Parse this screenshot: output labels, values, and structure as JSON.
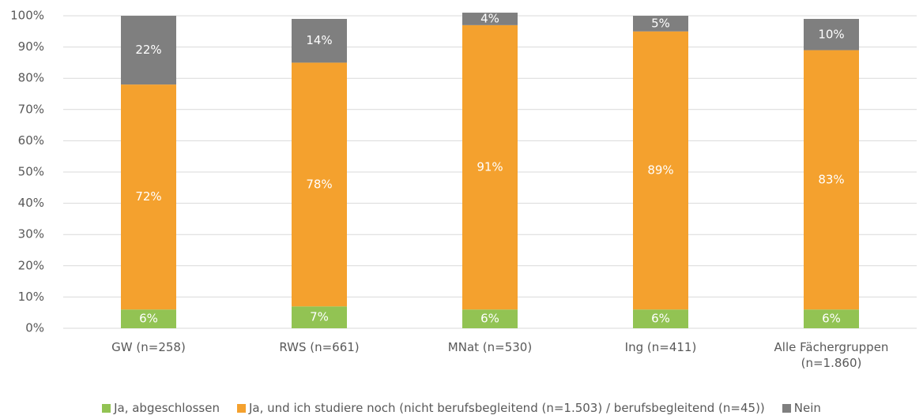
{
  "chart_data": {
    "type": "stacked_bar",
    "categories": [
      "GW (n=258)",
      "RWS (n=661)",
      "MNat (n=530)",
      "Ing (n=411)",
      "Alle Fächergruppen (n=1.860)"
    ],
    "series": [
      {
        "name": "Ja, abgeschlossen",
        "color": "#92c353",
        "values": [
          6,
          7,
          6,
          6,
          6
        ],
        "value_labels": [
          "6%",
          "7%",
          "6%",
          "6%",
          "6%"
        ]
      },
      {
        "name": "Ja, und ich studiere noch (nicht berufsbegleitend (n=1.503) / berufsbegleitend (n=45))",
        "color": "#f4a12e",
        "values": [
          72,
          78,
          91,
          89,
          83
        ],
        "value_labels": [
          "72%",
          "78%",
          "91%",
          "89%",
          "83%"
        ]
      },
      {
        "name": "Nein",
        "color": "#7f7f7f",
        "values": [
          22,
          14,
          4,
          5,
          10
        ],
        "value_labels": [
          "22%",
          "14%",
          "4%",
          "5%",
          "10%"
        ]
      }
    ],
    "ylim": [
      0,
      100
    ],
    "yticks": [
      {
        "value": 0,
        "label": "0%"
      },
      {
        "value": 10,
        "label": "10%"
      },
      {
        "value": 20,
        "label": "20%"
      },
      {
        "value": 30,
        "label": "30%"
      },
      {
        "value": 40,
        "label": "40%"
      },
      {
        "value": 50,
        "label": "50%"
      },
      {
        "value": 60,
        "label": "60%"
      },
      {
        "value": 70,
        "label": "70%"
      },
      {
        "value": 80,
        "label": "80%"
      },
      {
        "value": 90,
        "label": "90%"
      },
      {
        "value": 100,
        "label": "100%"
      }
    ],
    "grid": true,
    "legend": "bottom"
  }
}
